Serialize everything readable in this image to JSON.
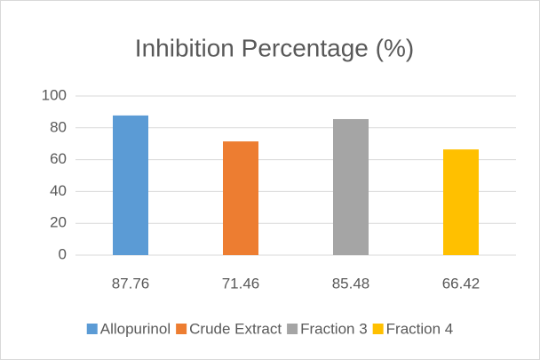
{
  "chart_data": {
    "type": "bar",
    "title": "Inhibition Percentage (%)",
    "categories": [
      "87.76",
      "71.46",
      "85.48",
      "66.42"
    ],
    "series": [
      {
        "name": "Allopurinol",
        "color": "#5b9bd5",
        "values": [
          87.76,
          null,
          null,
          null
        ]
      },
      {
        "name": "Crude Extract",
        "color": "#ed7d31",
        "values": [
          null,
          71.46,
          null,
          null
        ]
      },
      {
        "name": "Fraction 3",
        "color": "#a5a5a5",
        "values": [
          null,
          null,
          85.48,
          null
        ]
      },
      {
        "name": "Fraction 4",
        "color": "#ffc000",
        "values": [
          null,
          null,
          null,
          66.42
        ]
      }
    ],
    "ylim": [
      0,
      100
    ],
    "yticks": [
      0,
      20,
      40,
      60,
      80,
      100
    ],
    "grid": true,
    "legend": "bottom"
  }
}
